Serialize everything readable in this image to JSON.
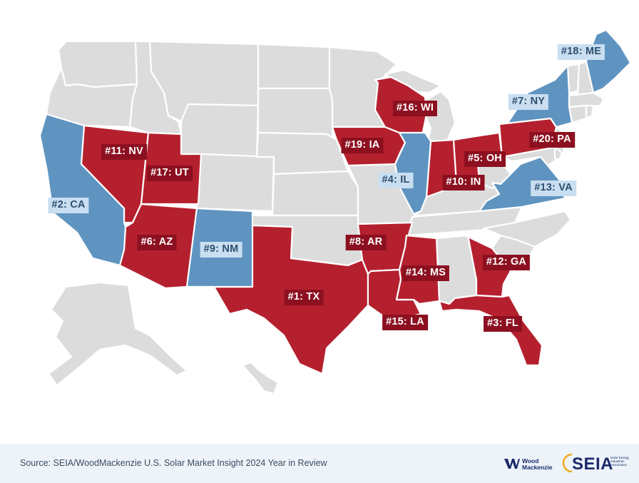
{
  "map": {
    "state_groups": {
      "red": "#b5202e",
      "blue": "#5f94c1",
      "gray": "#dcdcdc"
    },
    "rankings": [
      {
        "rank_label": "#1: TX",
        "state": "TX",
        "color": "red"
      },
      {
        "rank_label": "#2: CA",
        "state": "CA",
        "color": "blue"
      },
      {
        "rank_label": "#3: FL",
        "state": "FL",
        "color": "red"
      },
      {
        "rank_label": "#4: IL",
        "state": "IL",
        "color": "blue"
      },
      {
        "rank_label": "#5: OH",
        "state": "OH",
        "color": "red"
      },
      {
        "rank_label": "#6: AZ",
        "state": "AZ",
        "color": "red"
      },
      {
        "rank_label": "#7: NY",
        "state": "NY",
        "color": "blue"
      },
      {
        "rank_label": "#8: AR",
        "state": "AR",
        "color": "red"
      },
      {
        "rank_label": "#9: NM",
        "state": "NM",
        "color": "blue"
      },
      {
        "rank_label": "#10: IN",
        "state": "IN",
        "color": "red"
      },
      {
        "rank_label": "#11: NV",
        "state": "NV",
        "color": "red"
      },
      {
        "rank_label": "#12: GA",
        "state": "GA",
        "color": "red"
      },
      {
        "rank_label": "#13: VA",
        "state": "VA",
        "color": "blue"
      },
      {
        "rank_label": "#14: MS",
        "state": "MS",
        "color": "red"
      },
      {
        "rank_label": "#15: LA",
        "state": "LA",
        "color": "red"
      },
      {
        "rank_label": "#16: WI",
        "state": "WI",
        "color": "red"
      },
      {
        "rank_label": "#17: UT",
        "state": "UT",
        "color": "red"
      },
      {
        "rank_label": "#18: ME",
        "state": "ME",
        "color": "blue"
      },
      {
        "rank_label": "#19: IA",
        "state": "IA",
        "color": "red"
      },
      {
        "rank_label": "#20: PA",
        "state": "PA",
        "color": "red"
      }
    ]
  },
  "footer": {
    "source": "Source: SEIA/WoodMackenzie U.S. Solar Market Insight 2024 Year in Review",
    "wood_mackenzie_logo": "Wood Mackenzie",
    "seia_logo": "SEIA",
    "seia_tagline": "Solar Energy Industries Association"
  }
}
